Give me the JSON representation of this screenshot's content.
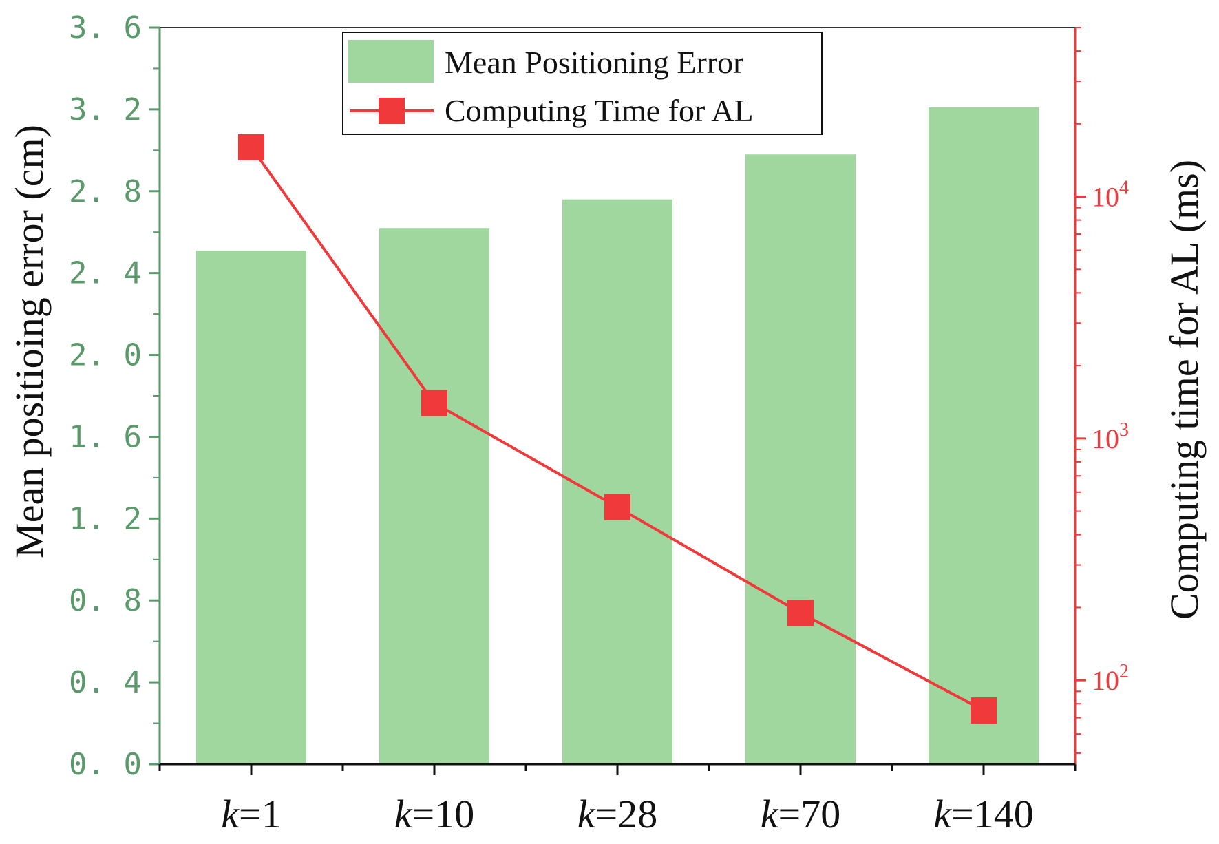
{
  "chart_data": {
    "type": "bar",
    "categories": [
      {
        "var": "k",
        "rest": "=1"
      },
      {
        "var": "k",
        "rest": "=10"
      },
      {
        "var": "k",
        "rest": "=28"
      },
      {
        "var": "k",
        "rest": "=70"
      },
      {
        "var": "k",
        "rest": "=140"
      }
    ],
    "series": [
      {
        "name": "Mean Positioning Error",
        "type": "bar",
        "axis": "left",
        "color": "#9fd79f",
        "values": [
          2.51,
          2.62,
          2.76,
          2.98,
          3.21
        ]
      },
      {
        "name": "Computing Time for AL",
        "type": "line",
        "marker": "square",
        "axis": "right",
        "color": "#f0393a",
        "values": [
          16000,
          1400,
          520,
          190,
          75
        ]
      }
    ],
    "ylabel": "Mean positioing error (cm)",
    "ylabel_right": "Computing time for AL (ms)",
    "ylim": [
      0,
      3.6
    ],
    "yticks": [
      "0. 0",
      "0. 4",
      "0. 8",
      "1. 2",
      "1. 6",
      "2. 0",
      "2. 4",
      "2. 8",
      "3. 2",
      "3. 6"
    ],
    "y_right_scale": "log",
    "y_right_lim": [
      45,
      50000
    ],
    "y_right_ticks": [
      {
        "value": 100,
        "base": "10",
        "exp": "2"
      },
      {
        "value": 1000,
        "base": "10",
        "exp": "3"
      },
      {
        "value": 10000,
        "base": "10",
        "exp": "4"
      }
    ],
    "left_axis_color": "#5a9a6a",
    "right_axis_color": "#f0393a",
    "legend_position": "top-center",
    "grid": false
  }
}
